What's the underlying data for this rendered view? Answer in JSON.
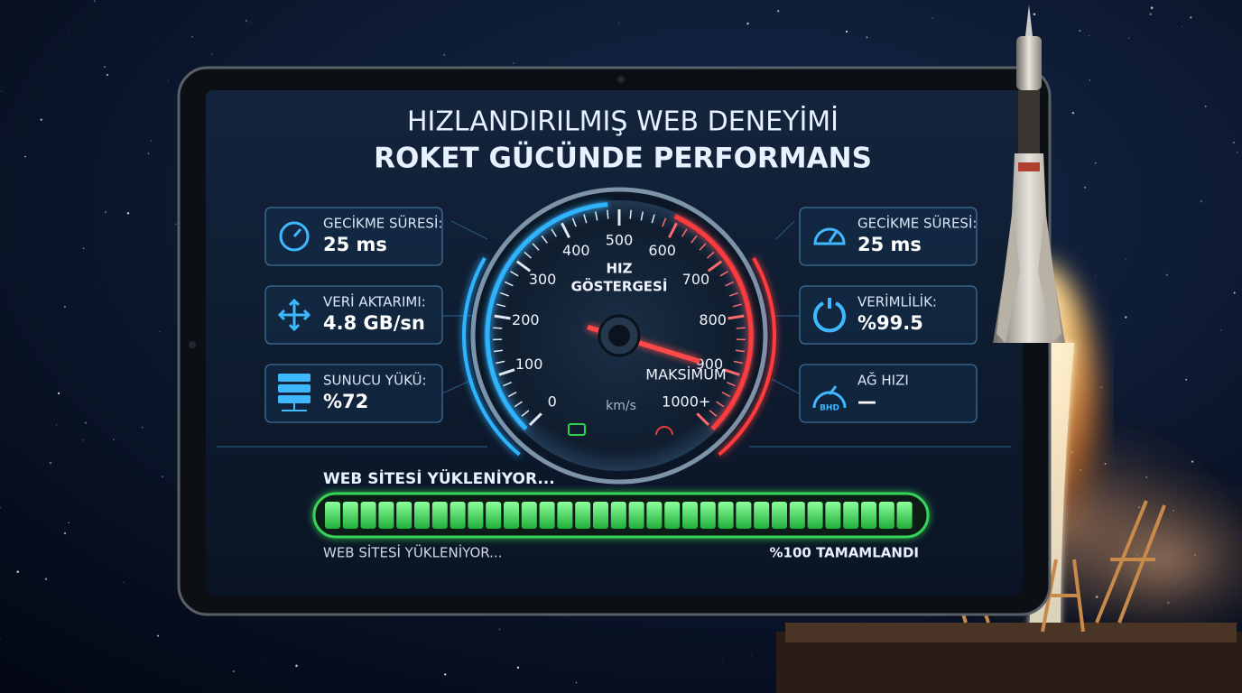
{
  "header": {
    "line1": "HIZLANDIRILMIŞ WEB DENEYİMİ",
    "line2": "ROKET GÜCÜNDE PERFORMANS"
  },
  "left_cards": [
    {
      "label": "GECİKME SÜRESİ:",
      "value": "25 ms"
    },
    {
      "label": "VERİ AKTARIMI:",
      "value": "4.8 GB/sn"
    },
    {
      "label": "SUNUCU YÜKÜ:",
      "value": "%72"
    }
  ],
  "right_cards": [
    {
      "label": "GECİKME SÜRESİ:",
      "value": "25 ms"
    },
    {
      "label": "VERİMLİLİK:",
      "value": "%99.5"
    },
    {
      "label": "AĞ HIZI",
      "value": "—",
      "icon_text": "BHD"
    }
  ],
  "gauge": {
    "title_line1": "HIZ",
    "title_line2": "GÖSTERGESİ",
    "ticks": [
      "0",
      "100",
      "200",
      "300",
      "400",
      "500",
      "600",
      "700",
      "800",
      "900",
      "1000+"
    ],
    "max_label": "MAKSİMUM",
    "unit": "km/s"
  },
  "progress": {
    "heading": "WEB SİTESİ YÜKLENİYOR...",
    "status": "WEB SİTESİ YÜKLENİYOR...",
    "complete": "%100 TAMAMLANDI"
  }
}
